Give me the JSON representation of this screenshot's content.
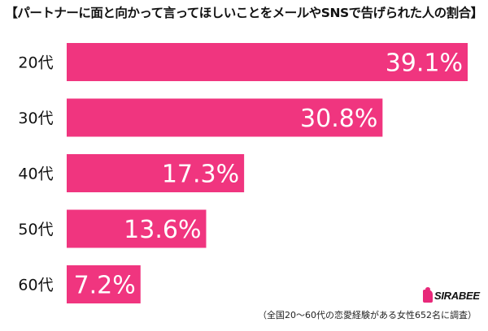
{
  "title": "【パートナーに面と向かって言ってほしいことをメールやSNSで告げられた人の割合】",
  "footnote": "（全国20〜60代の恋愛経験がある女性652名に調査）",
  "logo": {
    "text": "SIRABEE",
    "icon": "i-logo-icon"
  },
  "colors": {
    "bar": "#f0357f",
    "label_text": "#ffffff",
    "category_text": "#111111"
  },
  "chart_data": {
    "type": "bar",
    "orientation": "horizontal",
    "title": "【パートナーに面と向かって言ってほしいことをメールやSNSで告げられた人の割合】",
    "categories": [
      "20代",
      "30代",
      "40代",
      "50代",
      "60代"
    ],
    "values": [
      39.1,
      30.8,
      17.3,
      13.6,
      7.2
    ],
    "value_labels": [
      "39.1%",
      "30.8%",
      "17.3%",
      "13.6%",
      "7.2%"
    ],
    "unit": "%",
    "xlim": [
      0,
      39.1
    ],
    "grid": false,
    "legend": false
  }
}
